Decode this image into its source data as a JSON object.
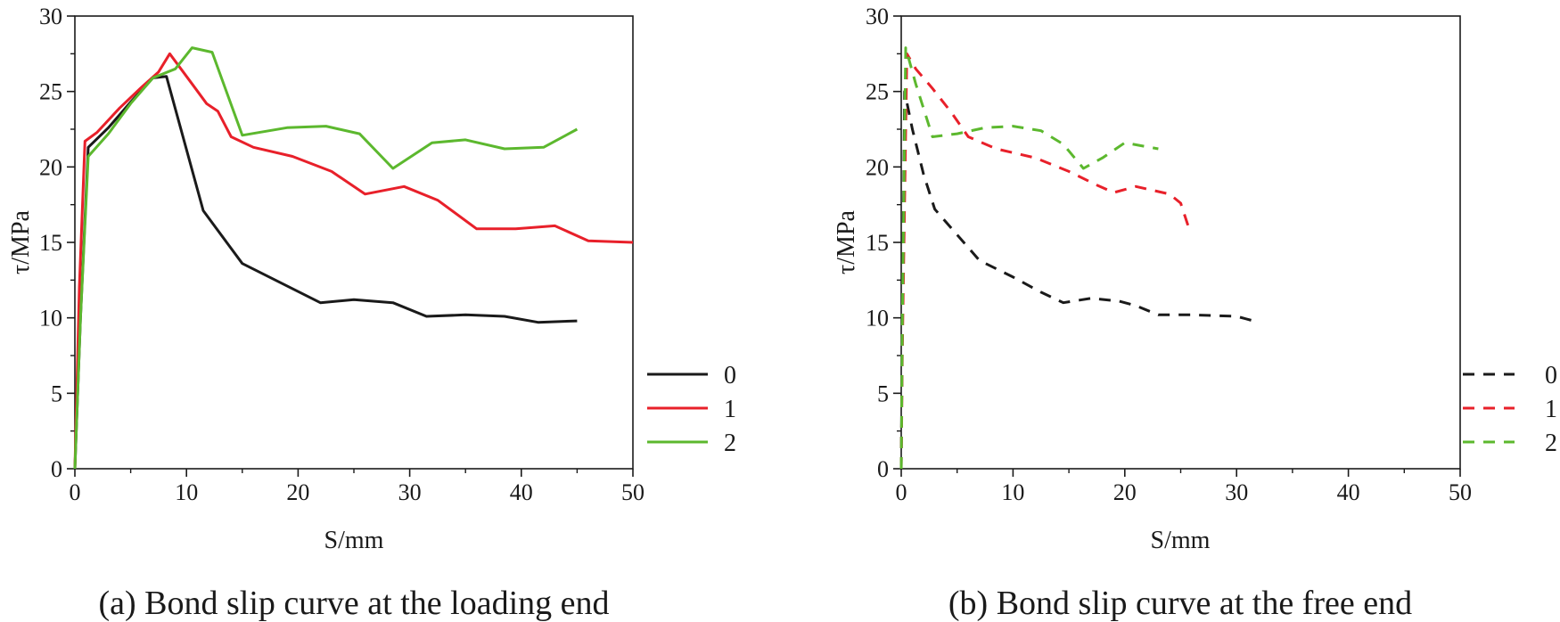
{
  "chart_data": [
    {
      "type": "line",
      "caption": "(a) Bond slip curve at the loading end",
      "xlabel": "S/mm",
      "ylabel": "τ/MPa",
      "xlim": [
        0,
        50
      ],
      "ylim": [
        0,
        30
      ],
      "xticks": [
        "0",
        "10",
        "20",
        "30",
        "40",
        "50"
      ],
      "yticks": [
        "0",
        "5",
        "10",
        "15",
        "20",
        "25",
        "30"
      ],
      "legend_position": "right",
      "series": [
        {
          "name": "0",
          "color": "#1a1a1a",
          "dash": "solid",
          "x": [
            0,
            0.5,
            1.2,
            3,
            5,
            7,
            8.2,
            11.5,
            15,
            22,
            25,
            28.5,
            31.5,
            35,
            38.5,
            41.5,
            45
          ],
          "y": [
            0,
            10,
            21.3,
            22.6,
            24.3,
            25.9,
            26,
            17.1,
            13.6,
            11,
            11.2,
            11,
            10.1,
            10.2,
            10.1,
            9.7,
            9.8
          ]
        },
        {
          "name": "1",
          "color": "#e8202a",
          "dash": "solid",
          "x": [
            0,
            0.4,
            0.9,
            2,
            4,
            6,
            7.5,
            8.5,
            10.5,
            11.8,
            12.8,
            14,
            16,
            19.5,
            23,
            26,
            29.5,
            32.5,
            36,
            39.5,
            43,
            46,
            50
          ],
          "y": [
            0,
            12,
            21.7,
            22.3,
            23.9,
            25.3,
            26.3,
            27.5,
            25.5,
            24.2,
            23.7,
            22,
            21.3,
            20.7,
            19.7,
            18.2,
            18.7,
            17.8,
            15.9,
            15.9,
            16.1,
            15.1,
            15
          ]
        },
        {
          "name": "2",
          "color": "#5cb82e",
          "dash": "solid",
          "x": [
            0,
            0.5,
            1.2,
            3,
            5,
            7,
            9,
            10.5,
            12.3,
            15,
            19,
            22.5,
            25.5,
            28.5,
            32,
            35,
            38.5,
            42,
            45
          ],
          "y": [
            0,
            10,
            20.7,
            22.2,
            24.2,
            25.9,
            26.5,
            27.9,
            27.6,
            22.1,
            22.6,
            22.7,
            22.2,
            19.9,
            21.6,
            21.8,
            21.2,
            21.3,
            22.5
          ]
        }
      ]
    },
    {
      "type": "line",
      "caption": "(b) Bond slip curve at the free end",
      "xlabel": "S/mm",
      "ylabel": "τ/MPa",
      "xlim": [
        0,
        50
      ],
      "ylim": [
        0,
        30
      ],
      "xticks": [
        "0",
        "10",
        "20",
        "30",
        "40",
        "50"
      ],
      "yticks": [
        "0",
        "5",
        "10",
        "15",
        "20",
        "25",
        "30"
      ],
      "legend_position": "right",
      "series": [
        {
          "name": "0",
          "color": "#1a1a1a",
          "dash": "dashed",
          "x": [
            0,
            0.05,
            0.3,
            1,
            2,
            3,
            5,
            7,
            10,
            12.5,
            14.5,
            17,
            19.5,
            21,
            23,
            26,
            30,
            32
          ],
          "y": [
            0,
            5,
            25,
            22.5,
            19.5,
            17.2,
            15.5,
            13.8,
            12.7,
            11.7,
            11,
            11.3,
            11.1,
            10.8,
            10.2,
            10.2,
            10.1,
            9.7
          ]
        },
        {
          "name": "1",
          "color": "#e8202a",
          "dash": "dashed",
          "x": [
            0,
            0.1,
            0.5,
            1.3,
            2.8,
            4.5,
            6,
            8.5,
            12,
            15,
            17.5,
            19,
            21,
            24,
            25,
            25.8
          ],
          "y": [
            0,
            8,
            27.5,
            26.5,
            25.2,
            23.6,
            22,
            21.2,
            20.6,
            19.7,
            18.8,
            18.3,
            18.7,
            18.2,
            17.6,
            15.8
          ]
        },
        {
          "name": "2",
          "color": "#5cb82e",
          "dash": "dashed",
          "x": [
            0,
            0.1,
            0.4,
            1.3,
            2.8,
            5,
            7.5,
            10,
            12.5,
            14.5,
            16.3,
            18,
            20,
            21.5,
            23
          ],
          "y": [
            0,
            10,
            27.9,
            25.5,
            22,
            22.2,
            22.6,
            22.7,
            22.4,
            21.5,
            19.9,
            20.6,
            21.6,
            21.4,
            21.2
          ]
        }
      ]
    }
  ]
}
